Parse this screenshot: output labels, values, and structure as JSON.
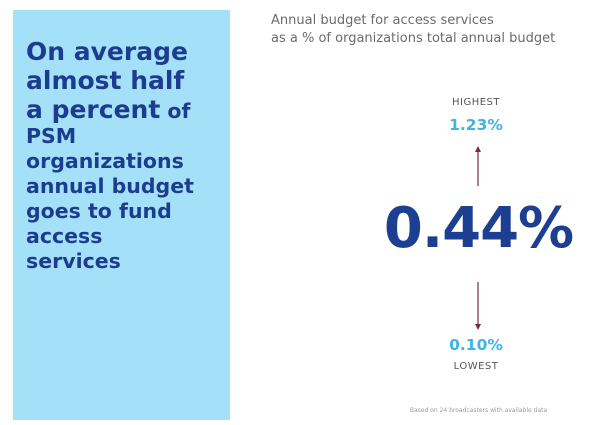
{
  "headline": {
    "line1": "On average",
    "line2": "almost half",
    "line3_strong": "a percent",
    "line3_rest": " of",
    "line4": "PSM",
    "line5": "organizations",
    "line6": "annual budget",
    "line7": "goes to fund",
    "line8": "access",
    "line9": "services"
  },
  "title": {
    "line1": "Annual budget for access services",
    "line2": "as a % of organizations total annual budget"
  },
  "stats": {
    "highest_label": "HIGHEST",
    "highest_value": "1.23%",
    "average_value": "0.44%",
    "lowest_value": "0.10%",
    "lowest_label": "LOWEST"
  },
  "footnote": "Based on 24 broadcasters with available data",
  "colors": {
    "panel_background": "#a4e0f7",
    "navy": "#1d3f91",
    "light_blue": "#3eb3e6",
    "arrow": "#7a2a44"
  },
  "icons": [
    "arrow-up-icon",
    "arrow-down-icon"
  ]
}
